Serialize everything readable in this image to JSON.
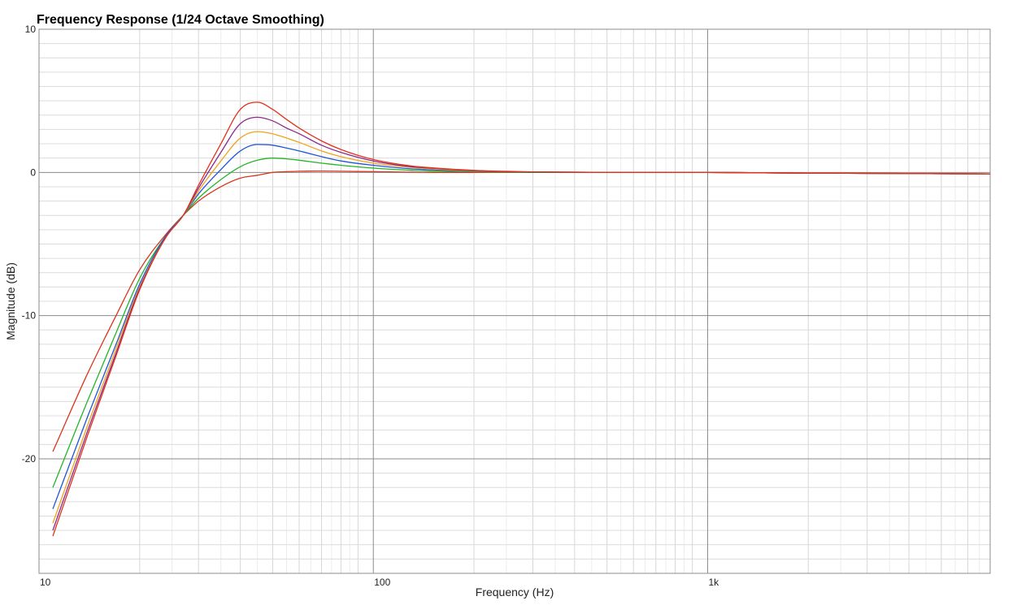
{
  "chart_data": {
    "type": "line",
    "title": "Frequency Response (1/24 Octave Smoothing)",
    "xlabel": "Frequency (Hz)",
    "ylabel": "Magnitude (dB)",
    "x_scale": "log",
    "xlim": [
      10,
      7000
    ],
    "ylim": [
      -28,
      10
    ],
    "x_ticks": [
      {
        "value": 10,
        "label": "10"
      },
      {
        "value": 100,
        "label": "100"
      },
      {
        "value": 1000,
        "label": "1k"
      }
    ],
    "y_ticks": [
      {
        "value": 10,
        "label": "10"
      },
      {
        "value": 0,
        "label": "0"
      },
      {
        "value": -10,
        "label": "-10"
      },
      {
        "value": -20,
        "label": "-20"
      }
    ],
    "grid": true,
    "legend": "none",
    "series": [
      {
        "color": "#d9351e",
        "x": [
          11,
          14,
          17,
          20,
          24,
          27,
          30,
          35,
          40,
          45,
          50,
          55,
          60,
          70,
          80,
          100,
          130,
          150,
          200,
          300,
          500,
          1000,
          2000,
          7000
        ],
        "y": [
          -19.5,
          -14.0,
          -10.0,
          -6.8,
          -4.3,
          -3.0,
          -2.0,
          -1.0,
          -0.4,
          -0.2,
          0.0,
          0.05,
          0.08,
          0.1,
          0.08,
          0.05,
          0.02,
          0.0,
          0.0,
          0.0,
          0.0,
          0.0,
          -0.05,
          -0.1
        ]
      },
      {
        "color": "#22b526",
        "x": [
          11,
          14,
          17,
          20,
          24,
          27,
          30,
          35,
          40,
          45,
          50,
          55,
          60,
          70,
          80,
          100,
          130,
          150,
          200,
          300,
          500,
          1000,
          2000,
          7000
        ],
        "y": [
          -22.0,
          -15.9,
          -11.2,
          -7.4,
          -4.4,
          -3.0,
          -1.8,
          -0.5,
          0.4,
          0.85,
          1.0,
          0.95,
          0.85,
          0.65,
          0.5,
          0.3,
          0.15,
          0.1,
          0.05,
          0.0,
          0.0,
          0.0,
          -0.05,
          -0.1
        ]
      },
      {
        "color": "#1f55d8",
        "x": [
          11,
          14,
          17,
          20,
          24,
          27,
          30,
          35,
          40,
          45,
          50,
          55,
          60,
          70,
          80,
          100,
          130,
          150,
          200,
          300,
          500,
          1000,
          2000,
          7000
        ],
        "y": [
          -23.5,
          -17.0,
          -12.0,
          -7.8,
          -4.4,
          -3.0,
          -1.5,
          0.2,
          1.5,
          1.95,
          1.9,
          1.7,
          1.5,
          1.1,
          0.8,
          0.5,
          0.25,
          0.18,
          0.08,
          0.02,
          0.0,
          0.0,
          -0.05,
          -0.1
        ]
      },
      {
        "color": "#f0a31b",
        "x": [
          11,
          14,
          17,
          20,
          24,
          27,
          30,
          35,
          40,
          45,
          50,
          55,
          60,
          70,
          80,
          100,
          130,
          150,
          200,
          300,
          500,
          1000,
          2000,
          7000
        ],
        "y": [
          -24.5,
          -17.6,
          -12.3,
          -8.0,
          -4.5,
          -3.0,
          -1.3,
          0.8,
          2.4,
          2.85,
          2.7,
          2.4,
          2.1,
          1.5,
          1.1,
          0.65,
          0.35,
          0.25,
          0.1,
          0.03,
          0.0,
          0.0,
          -0.05,
          -0.1
        ]
      },
      {
        "color": "#8a2a8a",
        "x": [
          11,
          14,
          17,
          20,
          24,
          27,
          30,
          35,
          40,
          45,
          50,
          55,
          60,
          70,
          80,
          100,
          130,
          150,
          200,
          300,
          500,
          1000,
          2000,
          7000
        ],
        "y": [
          -25.0,
          -18.0,
          -12.6,
          -8.1,
          -4.5,
          -3.0,
          -1.1,
          1.4,
          3.4,
          3.85,
          3.6,
          3.1,
          2.7,
          1.9,
          1.4,
          0.8,
          0.4,
          0.3,
          0.12,
          0.03,
          0.0,
          0.0,
          -0.05,
          -0.1
        ]
      },
      {
        "color": "#e0321c",
        "x": [
          11,
          14,
          17,
          20,
          24,
          27,
          30,
          35,
          40,
          45,
          50,
          55,
          60,
          70,
          80,
          100,
          130,
          150,
          200,
          300,
          500,
          1000,
          2000,
          7000
        ],
        "y": [
          -25.4,
          -18.3,
          -12.8,
          -8.2,
          -4.5,
          -3.0,
          -0.9,
          2.0,
          4.4,
          4.9,
          4.4,
          3.7,
          3.1,
          2.2,
          1.6,
          0.9,
          0.45,
          0.32,
          0.14,
          0.04,
          0.0,
          0.0,
          -0.05,
          -0.1
        ]
      }
    ]
  }
}
